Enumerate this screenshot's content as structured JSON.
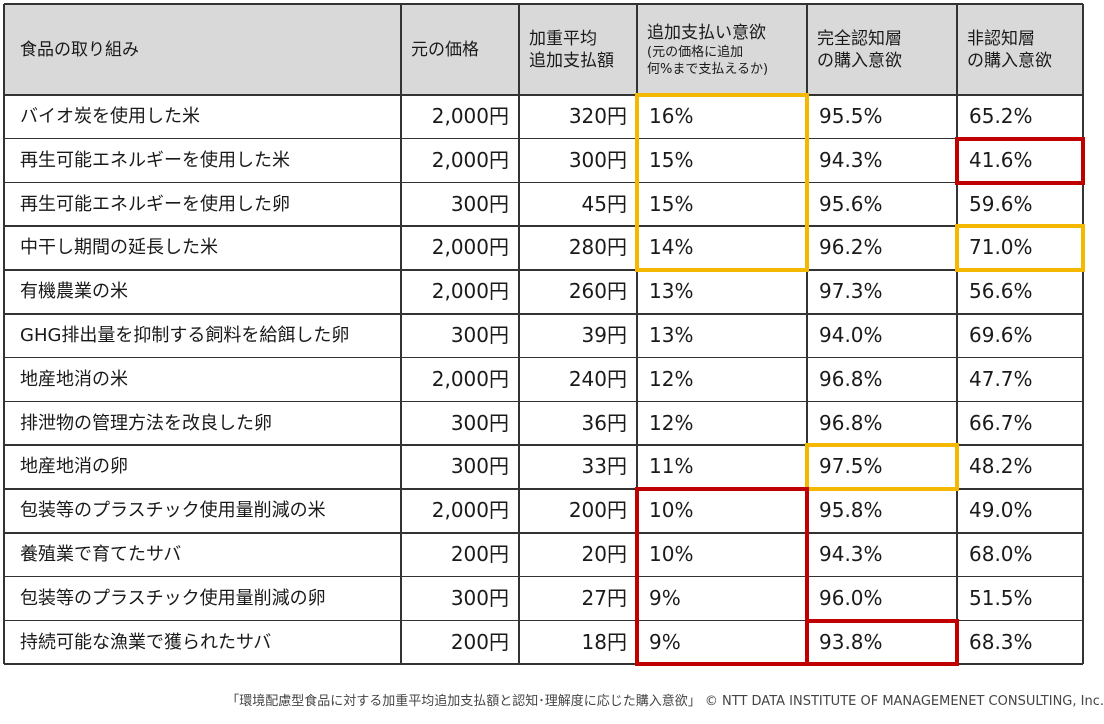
{
  "headers": [
    {
      "lines": [
        "食品の取り組み"
      ],
      "note": null
    },
    {
      "lines": [
        "元の価格"
      ],
      "note": null
    },
    {
      "lines": [
        "加重平均",
        "追加支払額"
      ],
      "note": null
    },
    {
      "lines": [
        "追加支払い意欲"
      ],
      "note": [
        "(元の価格に追加",
        "何%まで支払えるか)"
      ]
    },
    {
      "lines": [
        "完全認知層",
        "の購入意欲"
      ],
      "note": null
    },
    {
      "lines": [
        "非認知層",
        "の購入意欲"
      ],
      "note": null
    }
  ],
  "rows": [
    [
      "バイオ炭を使用した米",
      "2,000円",
      "320円",
      "16%",
      "95.5%",
      "65.2%"
    ],
    [
      "再生可能エネルギーを使用した米",
      "2,000円",
      "300円",
      "15%",
      "94.3%",
      "41.6%"
    ],
    [
      "再生可能エネルギーを使用した卵",
      "300円",
      "45円",
      "15%",
      "95.6%",
      "59.6%"
    ],
    [
      "中干し期間の延長した米",
      "2,000円",
      "280円",
      "14%",
      "96.2%",
      "71.0%"
    ],
    [
      "有機農業の米",
      "2,000円",
      "260円",
      "13%",
      "97.3%",
      "56.6%"
    ],
    [
      "GHG排出量を抑制する飼料を給餌した卵",
      "300円",
      "39円",
      "13%",
      "94.0%",
      "69.6%"
    ],
    [
      "地産地消の米",
      "2,000円",
      "240円",
      "12%",
      "96.8%",
      "47.7%"
    ],
    [
      "排泄物の管理方法を改良した卵",
      "300円",
      "36円",
      "12%",
      "96.8%",
      "66.7%"
    ],
    [
      "地産地消の卵",
      "300円",
      "33円",
      "11%",
      "97.5%",
      "48.2%"
    ],
    [
      "包装等のプラスチック使用量削減の米",
      "2,000円",
      "200円",
      "10%",
      "95.8%",
      "49.0%"
    ],
    [
      "養殖業で育てたサバ",
      "200円",
      "20円",
      "10%",
      "94.3%",
      "68.0%"
    ],
    [
      "包装等のプラスチック使用量削減の卵",
      "300円",
      "27円",
      "9%",
      "96.0%",
      "51.5%"
    ],
    [
      "持続可能な漁業で獲られたサバ",
      "200円",
      "18円",
      "9%",
      "93.8%",
      "68.3%"
    ]
  ],
  "caption": "「環境配慮型食品に対する加重平均追加支払額と認知･理解度に応じた購入意欲」 © NTT DATA INSTITUTE OF MANAGEMENET CONSULTING, Inc.",
  "colors": {
    "header_bg": "#d9d9d9",
    "highlight_yellow": "#f5b800",
    "highlight_red": "#c00000",
    "grid": "#333333"
  }
}
